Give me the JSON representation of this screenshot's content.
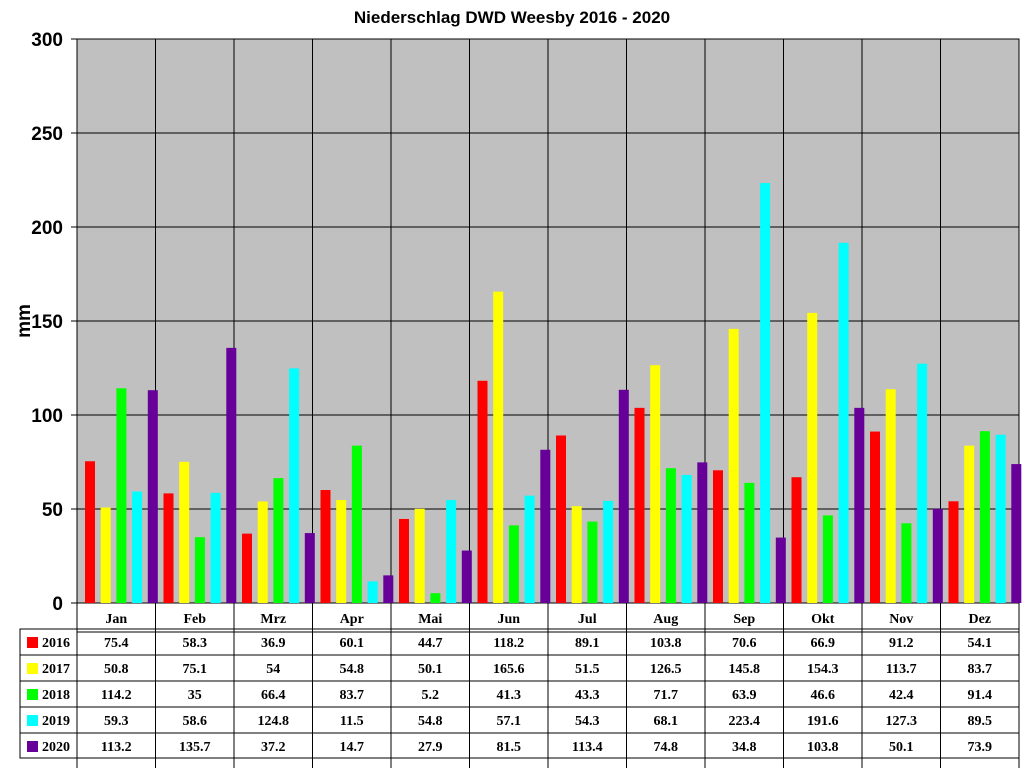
{
  "chart_data": {
    "type": "bar",
    "title": "Niederschlag DWD Weesby 2016 - 2020",
    "xlabel": "",
    "ylabel": "mm",
    "ylim": [
      0,
      300
    ],
    "yticks": [
      0,
      50,
      100,
      150,
      200,
      250,
      300
    ],
    "grid": true,
    "legend_placement": "data table below chart",
    "plot_background": "#c0c0c0",
    "categories": [
      "Jan",
      "Feb",
      "Mrz",
      "Apr",
      "Mai",
      "Jun",
      "Jul",
      "Aug",
      "Sep",
      "Okt",
      "Nov",
      "Dez"
    ],
    "series": [
      {
        "name": "2016",
        "color": "#ff0000",
        "values": [
          75.4,
          58.3,
          36.9,
          60.1,
          44.7,
          118.2,
          89.1,
          103.8,
          70.6,
          66.9,
          91.2,
          54.1
        ]
      },
      {
        "name": "2017",
        "color": "#ffff00",
        "values": [
          50.8,
          75.1,
          54,
          54.8,
          50.1,
          165.6,
          51.5,
          126.5,
          145.8,
          154.3,
          113.7,
          83.7
        ]
      },
      {
        "name": "2018",
        "color": "#00ff00",
        "values": [
          114.2,
          35,
          66.4,
          83.7,
          5.2,
          41.3,
          43.3,
          71.7,
          63.9,
          46.6,
          42.4,
          91.4
        ]
      },
      {
        "name": "2019",
        "color": "#00ffff",
        "values": [
          59.3,
          58.6,
          124.8,
          11.5,
          54.8,
          57.1,
          54.3,
          68.1,
          223.4,
          191.6,
          127.3,
          89.5
        ]
      },
      {
        "name": "2020",
        "color": "#660099",
        "values": [
          113.2,
          135.7,
          37.2,
          14.7,
          27.9,
          81.5,
          113.4,
          74.8,
          34.8,
          103.8,
          50.1,
          73.9
        ]
      }
    ],
    "table_labels": [
      [
        "75.4",
        "58.3",
        "36.9",
        "60.1",
        "44.7",
        "118.2",
        "89.1",
        "103.8",
        "70.6",
        "66.9",
        "91.2",
        "54.1"
      ],
      [
        "50.8",
        "75.1",
        "54",
        "54.8",
        "50.1",
        "165.6",
        "51.5",
        "126.5",
        "145.8",
        "154.3",
        "113.7",
        "83.7"
      ],
      [
        "114.2",
        "35",
        "66.4",
        "83.7",
        "5.2",
        "41.3",
        "43.3",
        "71.7",
        "63.9",
        "46.6",
        "42.4",
        "91.4"
      ],
      [
        "59.3",
        "58.6",
        "124.8",
        "11.5",
        "54.8",
        "57.1",
        "54.3",
        "68.1",
        "223.4",
        "191.6",
        "127.3",
        "89.5"
      ],
      [
        "113.2",
        "135.7",
        "37.2",
        "14.7",
        "27.9",
        "81.5",
        "113.4",
        "74.8",
        "34.8",
        "103.8",
        "50.1",
        "73.9"
      ]
    ]
  }
}
